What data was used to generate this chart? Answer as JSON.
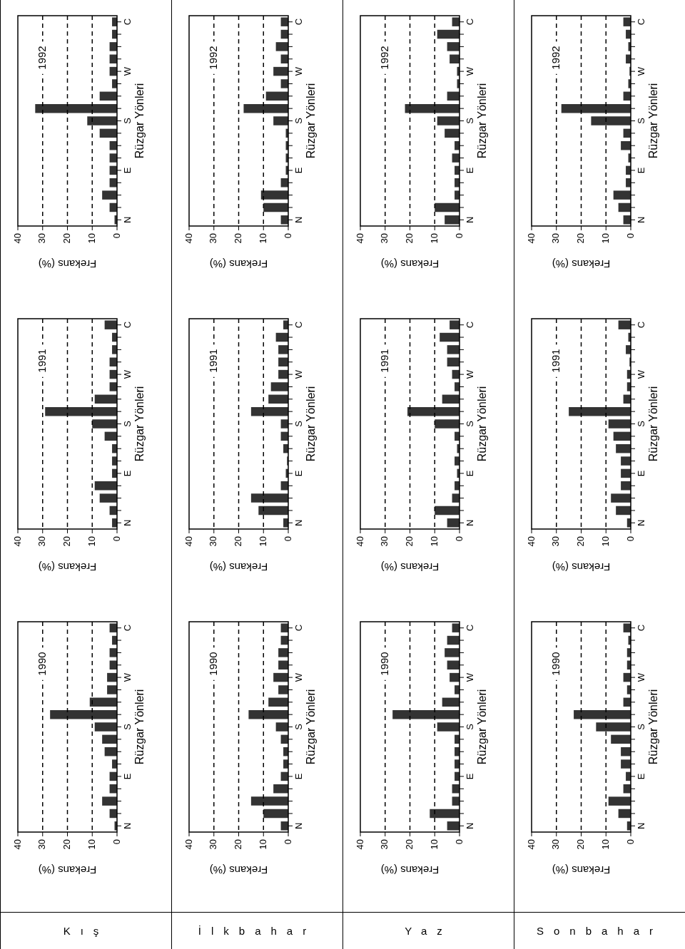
{
  "chart_data": [
    {
      "type": "bar",
      "orientation": "horizontal",
      "title": "1992",
      "xlabel": "Frekans (%)",
      "ylabel": "Rüzgar Yönleri",
      "categories": [
        "C",
        null,
        null,
        null,
        "W",
        null,
        null,
        null,
        "S",
        null,
        null,
        null,
        "E",
        null,
        null,
        null,
        "N"
      ],
      "values": [
        2,
        2,
        3,
        3,
        3,
        2,
        7,
        33,
        12,
        7,
        3,
        3,
        3,
        3,
        6,
        3,
        1
      ],
      "color": "#333333",
      "xlim": [
        40,
        0
      ],
      "xticks": [
        40,
        30,
        20,
        10,
        0
      ],
      "grid": "x"
    },
    {
      "type": "bar",
      "orientation": "horizontal",
      "title": "1992",
      "xlabel": "Frekans (%)",
      "ylabel": "Rüzgar Yönleri",
      "categories": [
        "C",
        null,
        null,
        null,
        "W",
        null,
        null,
        null,
        "S",
        null,
        null,
        null,
        "E",
        null,
        null,
        null,
        "N"
      ],
      "values": [
        3,
        3,
        5,
        3,
        6,
        3,
        9,
        18,
        6,
        1,
        1,
        1,
        1,
        3,
        11,
        10,
        3
      ],
      "color": "#333333",
      "xlim": [
        40,
        0
      ],
      "xticks": [
        40,
        30,
        20,
        10,
        0
      ],
      "grid": "x"
    },
    {
      "type": "bar",
      "orientation": "horizontal",
      "title": "1992",
      "xlabel": "Frekans (%)",
      "ylabel": "Rüzgar Yönleri",
      "categories": [
        "C",
        null,
        null,
        null,
        "W",
        null,
        null,
        null,
        "S",
        null,
        null,
        null,
        "E",
        null,
        null,
        null,
        "N"
      ],
      "values": [
        3,
        9,
        5,
        4,
        1,
        1,
        5,
        22,
        9,
        6,
        2,
        3,
        2,
        2,
        2,
        10,
        6
      ],
      "color": "#333333",
      "xlim": [
        40,
        0
      ],
      "xticks": [
        40,
        30,
        20,
        10,
        0
      ],
      "grid": "x"
    },
    {
      "type": "bar",
      "orientation": "horizontal",
      "title": "1992",
      "xlabel": "Frekans (%)",
      "ylabel": "Rüzgar Yönleri",
      "categories": [
        "C",
        null,
        null,
        null,
        "W",
        null,
        null,
        null,
        "S",
        null,
        null,
        null,
        "E",
        null,
        null,
        null,
        "N"
      ],
      "values": [
        3,
        2,
        1,
        2,
        0.5,
        1,
        3,
        28,
        16,
        3,
        4,
        1,
        2,
        2,
        7,
        5,
        3
      ],
      "color": "#333333",
      "xlim": [
        40,
        0
      ],
      "xticks": [
        40,
        30,
        20,
        10,
        0
      ],
      "grid": "x"
    },
    {
      "type": "bar",
      "orientation": "horizontal",
      "title": "1991",
      "xlabel": "Frekans (%)",
      "ylabel": "Rüzgar Yönleri",
      "categories": [
        "C",
        null,
        null,
        null,
        "W",
        null,
        null,
        null,
        "S",
        null,
        null,
        null,
        "E",
        null,
        null,
        null,
        "N"
      ],
      "values": [
        5,
        2,
        2,
        3,
        3,
        3,
        9,
        29,
        10,
        5,
        2,
        2,
        2,
        9,
        7,
        3,
        2
      ],
      "color": "#333333",
      "xlim": [
        40,
        0
      ],
      "xticks": [
        40,
        30,
        20,
        10,
        0
      ],
      "grid": "x"
    },
    {
      "type": "bar",
      "orientation": "horizontal",
      "title": "1991",
      "xlabel": "Frekans (%)",
      "ylabel": "Rüzgar Yönleri",
      "categories": [
        "C",
        null,
        null,
        null,
        "W",
        null,
        null,
        null,
        "S",
        null,
        null,
        null,
        "E",
        null,
        null,
        null,
        "N"
      ],
      "values": [
        2,
        5,
        4,
        4,
        4,
        7,
        8,
        15,
        3,
        3,
        2,
        0.5,
        1,
        3,
        15,
        12,
        2
      ],
      "color": "#333333",
      "xlim": [
        40,
        0
      ],
      "xticks": [
        40,
        30,
        20,
        10,
        0
      ],
      "grid": "x"
    },
    {
      "type": "bar",
      "orientation": "horizontal",
      "title": "1991",
      "xlabel": "Frekans (%)",
      "ylabel": "Rüzgar Yönleri",
      "categories": [
        "C",
        null,
        null,
        null,
        "W",
        null,
        null,
        null,
        "S",
        null,
        null,
        null,
        "E",
        null,
        null,
        null,
        "N"
      ],
      "values": [
        4,
        8,
        5,
        5,
        3,
        2,
        7,
        21,
        10,
        2,
        1,
        2,
        1,
        2,
        3,
        10,
        5
      ],
      "color": "#333333",
      "xlim": [
        40,
        0
      ],
      "xticks": [
        40,
        30,
        20,
        10,
        0
      ],
      "grid": "x"
    },
    {
      "type": "bar",
      "orientation": "horizontal",
      "title": "1991",
      "xlabel": "Frekans (%)",
      "ylabel": "Rüzgar Yönleri",
      "categories": [
        "C",
        null,
        null,
        null,
        "W",
        null,
        null,
        null,
        "S",
        null,
        null,
        null,
        "E",
        null,
        null,
        null,
        "N"
      ],
      "values": [
        5,
        1,
        2,
        0.5,
        1.5,
        1.5,
        3,
        25,
        9,
        7,
        6,
        4,
        4,
        4,
        8,
        6,
        1.5
      ],
      "color": "#333333",
      "xlim": [
        40,
        0
      ],
      "xticks": [
        40,
        30,
        20,
        10,
        0
      ],
      "grid": "x"
    },
    {
      "type": "bar",
      "orientation": "horizontal",
      "title": "1990",
      "subtitle": "Kış",
      "xlabel": "Frekans (%)",
      "ylabel": "Rüzgar Yönleri",
      "categories": [
        "C",
        null,
        null,
        null,
        "W",
        null,
        null,
        null,
        "S",
        null,
        null,
        null,
        "E",
        null,
        null,
        null,
        "N"
      ],
      "values": [
        3,
        2,
        3,
        3,
        4,
        4,
        11,
        27,
        9,
        6,
        5,
        2,
        3,
        3,
        6,
        3,
        1
      ],
      "color": "#333333",
      "xlim": [
        40,
        0
      ],
      "xticks": [
        40,
        30,
        20,
        10,
        0
      ],
      "grid": "x"
    },
    {
      "type": "bar",
      "orientation": "horizontal",
      "title": "1990",
      "subtitle": "İlkbahar",
      "xlabel": "Frekans (%)",
      "ylabel": "Rüzgar Yönleri",
      "categories": [
        "C",
        null,
        null,
        null,
        "W",
        null,
        null,
        null,
        "S",
        null,
        null,
        null,
        "E",
        null,
        null,
        null,
        "N"
      ],
      "values": [
        3,
        3,
        4,
        4,
        6,
        4,
        8,
        16,
        5,
        3,
        2,
        2,
        3,
        6,
        15,
        10,
        3
      ],
      "color": "#333333",
      "xlim": [
        40,
        0
      ],
      "xticks": [
        40,
        30,
        20,
        10,
        0
      ],
      "grid": "x"
    },
    {
      "type": "bar",
      "orientation": "horizontal",
      "title": "1990",
      "subtitle": "Yaz",
      "xlabel": "Frekans (%)",
      "ylabel": "Rüzgar Yönleri",
      "categories": [
        "C",
        null,
        null,
        null,
        "W",
        null,
        null,
        null,
        "S",
        null,
        null,
        null,
        "E",
        null,
        null,
        null,
        "N"
      ],
      "values": [
        3,
        5,
        6,
        5,
        4,
        2,
        7,
        27,
        9,
        2,
        2,
        2,
        2,
        3,
        3,
        12,
        5
      ],
      "color": "#333333",
      "xlim": [
        40,
        0
      ],
      "xticks": [
        40,
        30,
        20,
        10,
        0
      ],
      "grid": "x"
    },
    {
      "type": "bar",
      "orientation": "horizontal",
      "title": "1990",
      "subtitle": "Sonbahar",
      "xlabel": "Frekans (%)",
      "ylabel": "Rüzgar Yönleri",
      "categories": [
        "C",
        null,
        null,
        null,
        "W",
        null,
        null,
        null,
        "S",
        null,
        null,
        null,
        "E",
        null,
        null,
        null,
        "N"
      ],
      "values": [
        3,
        1,
        1.5,
        1.5,
        3,
        1.5,
        3,
        23,
        14,
        8,
        4,
        4,
        2,
        3,
        9,
        5,
        1.5
      ],
      "color": "#333333",
      "xlim": [
        40,
        0
      ],
      "xticks": [
        40,
        30,
        20,
        10,
        0
      ],
      "grid": "x"
    }
  ]
}
